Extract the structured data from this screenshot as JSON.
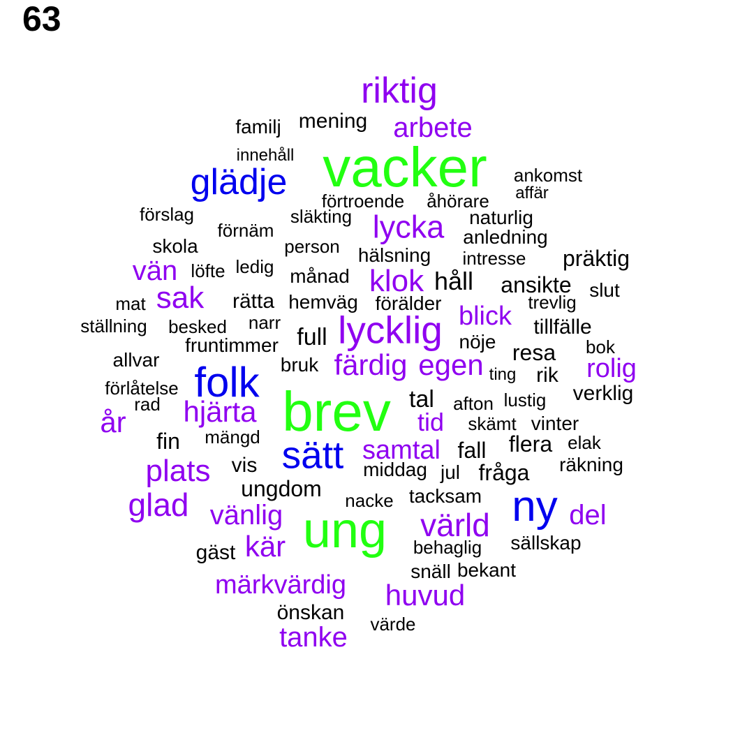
{
  "panel_label": "63",
  "colors": {
    "green": "#22ff11",
    "blue": "#0000ee",
    "purple": "#8f00f0",
    "black": "#000000"
  },
  "words": [
    {
      "text": "vacker",
      "color": "green"
    },
    {
      "text": "brev",
      "color": "green"
    },
    {
      "text": "ung",
      "color": "green"
    },
    {
      "text": "riktig",
      "color": "purple"
    },
    {
      "text": "glädje",
      "color": "blue"
    },
    {
      "text": "folk",
      "color": "blue"
    },
    {
      "text": "sätt",
      "color": "blue"
    },
    {
      "text": "ny",
      "color": "blue"
    },
    {
      "text": "arbete",
      "color": "purple"
    },
    {
      "text": "lycka",
      "color": "purple"
    },
    {
      "text": "vän",
      "color": "purple"
    },
    {
      "text": "sak",
      "color": "purple"
    },
    {
      "text": "klok",
      "color": "purple"
    },
    {
      "text": "lycklig",
      "color": "purple"
    },
    {
      "text": "blick",
      "color": "purple"
    },
    {
      "text": "färdig",
      "color": "purple"
    },
    {
      "text": "egen",
      "color": "purple"
    },
    {
      "text": "rolig",
      "color": "purple"
    },
    {
      "text": "hjärta",
      "color": "purple"
    },
    {
      "text": "år",
      "color": "purple"
    },
    {
      "text": "tid",
      "color": "purple"
    },
    {
      "text": "samtal",
      "color": "purple"
    },
    {
      "text": "plats",
      "color": "purple"
    },
    {
      "text": "glad",
      "color": "purple"
    },
    {
      "text": "vänlig",
      "color": "purple"
    },
    {
      "text": "värld",
      "color": "purple"
    },
    {
      "text": "del",
      "color": "purple"
    },
    {
      "text": "kär",
      "color": "purple"
    },
    {
      "text": "märkvärdig",
      "color": "purple"
    },
    {
      "text": "huvud",
      "color": "purple"
    },
    {
      "text": "tanke",
      "color": "purple"
    },
    {
      "text": "familj",
      "color": "black"
    },
    {
      "text": "mening",
      "color": "black"
    },
    {
      "text": "innehåll",
      "color": "black"
    },
    {
      "text": "ankomst",
      "color": "black"
    },
    {
      "text": "affär",
      "color": "black"
    },
    {
      "text": "förtroende",
      "color": "black"
    },
    {
      "text": "åhörare",
      "color": "black"
    },
    {
      "text": "förslag",
      "color": "black"
    },
    {
      "text": "släkting",
      "color": "black"
    },
    {
      "text": "naturlig",
      "color": "black"
    },
    {
      "text": "förnäm",
      "color": "black"
    },
    {
      "text": "anledning",
      "color": "black"
    },
    {
      "text": "skola",
      "color": "black"
    },
    {
      "text": "person",
      "color": "black"
    },
    {
      "text": "hälsning",
      "color": "black"
    },
    {
      "text": "intresse",
      "color": "black"
    },
    {
      "text": "präktig",
      "color": "black"
    },
    {
      "text": "löfte",
      "color": "black"
    },
    {
      "text": "ledig",
      "color": "black"
    },
    {
      "text": "månad",
      "color": "black"
    },
    {
      "text": "håll",
      "color": "black"
    },
    {
      "text": "ansikte",
      "color": "black"
    },
    {
      "text": "slut",
      "color": "black"
    },
    {
      "text": "mat",
      "color": "black"
    },
    {
      "text": "rätta",
      "color": "black"
    },
    {
      "text": "hemväg",
      "color": "black"
    },
    {
      "text": "förälder",
      "color": "black"
    },
    {
      "text": "trevlig",
      "color": "black"
    },
    {
      "text": "ställning",
      "color": "black"
    },
    {
      "text": "besked",
      "color": "black"
    },
    {
      "text": "narr",
      "color": "black"
    },
    {
      "text": "full",
      "color": "black"
    },
    {
      "text": "tillfälle",
      "color": "black"
    },
    {
      "text": "fruntimmer",
      "color": "black"
    },
    {
      "text": "nöje",
      "color": "black"
    },
    {
      "text": "bok",
      "color": "black"
    },
    {
      "text": "allvar",
      "color": "black"
    },
    {
      "text": "resa",
      "color": "black"
    },
    {
      "text": "bruk",
      "color": "black"
    },
    {
      "text": "ting",
      "color": "black"
    },
    {
      "text": "rik",
      "color": "black"
    },
    {
      "text": "förlåtelse",
      "color": "black"
    },
    {
      "text": "verklig",
      "color": "black"
    },
    {
      "text": "rad",
      "color": "black"
    },
    {
      "text": "tal",
      "color": "black"
    },
    {
      "text": "afton",
      "color": "black"
    },
    {
      "text": "lustig",
      "color": "black"
    },
    {
      "text": "skämt",
      "color": "black"
    },
    {
      "text": "vinter",
      "color": "black"
    },
    {
      "text": "fin",
      "color": "black"
    },
    {
      "text": "mängd",
      "color": "black"
    },
    {
      "text": "flera",
      "color": "black"
    },
    {
      "text": "elak",
      "color": "black"
    },
    {
      "text": "fall",
      "color": "black"
    },
    {
      "text": "vis",
      "color": "black"
    },
    {
      "text": "middag",
      "color": "black"
    },
    {
      "text": "jul",
      "color": "black"
    },
    {
      "text": "fråga",
      "color": "black"
    },
    {
      "text": "räkning",
      "color": "black"
    },
    {
      "text": "ungdom",
      "color": "black"
    },
    {
      "text": "nacke",
      "color": "black"
    },
    {
      "text": "tacksam",
      "color": "black"
    },
    {
      "text": "sällskap",
      "color": "black"
    },
    {
      "text": "behaglig",
      "color": "black"
    },
    {
      "text": "gäst",
      "color": "black"
    },
    {
      "text": "snäll",
      "color": "black"
    },
    {
      "text": "bekant",
      "color": "black"
    },
    {
      "text": "önskan",
      "color": "black"
    },
    {
      "text": "värde",
      "color": "black"
    }
  ]
}
